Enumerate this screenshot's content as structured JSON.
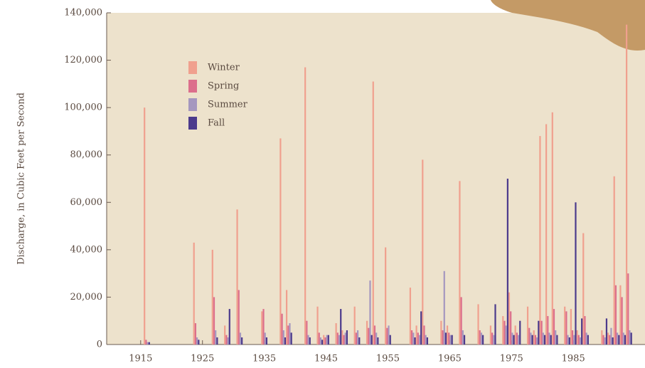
{
  "chart_data": {
    "type": "bar",
    "y_label": "Discharge, in Cubic Feet per Second",
    "x": [
      1916,
      1924,
      1927,
      1929,
      1931,
      1935,
      1938,
      1939,
      1942,
      1944,
      1945,
      1947,
      1948,
      1950,
      1952,
      1953,
      1955,
      1959,
      1960,
      1961,
      1964,
      1965,
      1967,
      1970,
      1972,
      1974,
      1975,
      1976,
      1978,
      1979,
      1980,
      1981,
      1982,
      1984,
      1985,
      1986,
      1987,
      1990,
      1991,
      1992,
      1993,
      1994
    ],
    "series": [
      {
        "name": "Winter",
        "color": "#f0a08e",
        "values": [
          100000,
          43000,
          40000,
          8000,
          57000,
          14000,
          87000,
          23000,
          117000,
          16000,
          4000,
          9000,
          6000,
          16000,
          10000,
          111000,
          41000,
          24000,
          8000,
          78000,
          10000,
          8000,
          69000,
          17000,
          8000,
          12000,
          22000,
          8000,
          16000,
          6000,
          88000,
          93000,
          98000,
          16000,
          15000,
          6000,
          47000,
          6000,
          5000,
          71000,
          25000,
          135000
        ]
      },
      {
        "name": "Spring",
        "color": "#dc6f8c",
        "values": [
          2000,
          9000,
          20000,
          4000,
          23000,
          15000,
          13000,
          8000,
          10000,
          5000,
          3000,
          5000,
          4000,
          5000,
          7000,
          8000,
          7000,
          6000,
          5000,
          8000,
          6000,
          5000,
          20000,
          6000,
          5000,
          10000,
          14000,
          5000,
          7000,
          4000,
          10000,
          12000,
          15000,
          14000,
          6000,
          4000,
          12000,
          4000,
          4000,
          25000,
          20000,
          30000
        ]
      },
      {
        "name": "Summer",
        "color": "#a597bf",
        "values": [
          1000,
          3000,
          6000,
          3000,
          5000,
          5000,
          6000,
          9000,
          4000,
          3000,
          4000,
          4000,
          5000,
          6000,
          27000,
          5000,
          8000,
          5000,
          4000,
          4000,
          31000,
          4000,
          6000,
          5000,
          4000,
          8000,
          5000,
          4000,
          5000,
          3000,
          5000,
          5000,
          6000,
          4000,
          4000,
          3000,
          5000,
          3000,
          7000,
          5000,
          5000,
          6000
        ]
      },
      {
        "name": "Fall",
        "color": "#4b3a8c",
        "values": [
          1000,
          2000,
          3000,
          15000,
          3000,
          3000,
          3000,
          5000,
          3000,
          2000,
          4000,
          15000,
          6000,
          3000,
          4000,
          3000,
          4000,
          3000,
          14000,
          3000,
          5000,
          4000,
          4000,
          4000,
          17000,
          70000,
          4000,
          10000,
          4000,
          10000,
          4000,
          4000,
          4000,
          3000,
          60000,
          11000,
          4000,
          11000,
          3000,
          4000,
          4000,
          5000
        ]
      }
    ],
    "xlim": [
      1909.5,
      1996.6
    ],
    "xticks": [
      1915,
      1925,
      1935,
      1945,
      1955,
      1965,
      1975,
      1985
    ],
    "ylim": [
      0,
      140000
    ],
    "yticks": [
      0,
      {
        "value": 20000,
        "label": "20,000"
      },
      {
        "value": 40000,
        "label": "40,000"
      },
      {
        "value": 60000,
        "label": "60,000"
      },
      {
        "value": 80000,
        "label": "80,000"
      },
      {
        "value": 100000,
        "label": "100,000"
      },
      {
        "value": 120000,
        "label": "120,000"
      },
      {
        "value": 140000,
        "label": "140,000"
      }
    ]
  }
}
